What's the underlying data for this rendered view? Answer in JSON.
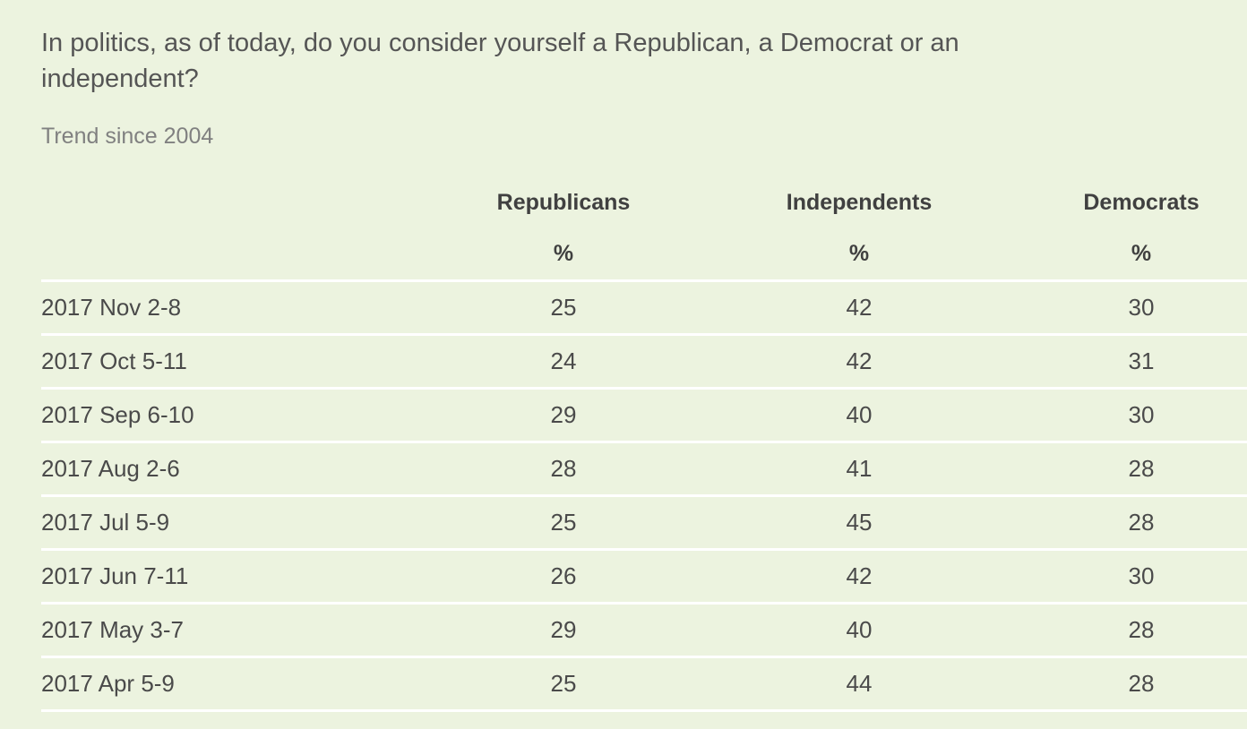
{
  "header": {
    "title": "In politics, as of today, do you consider yourself a Republican, a Democrat or an independent?",
    "subtitle": "Trend since 2004"
  },
  "table": {
    "columns": [
      "Republicans",
      "Independents",
      "Democrats"
    ],
    "units": [
      "%",
      "%",
      "%"
    ],
    "rows": [
      [
        "2017 Nov 2-8",
        25,
        42,
        30
      ],
      [
        "2017 Oct 5-11",
        24,
        42,
        31
      ],
      [
        "2017 Sep 6-10",
        29,
        40,
        30
      ],
      [
        "2017 Aug 2-6",
        28,
        41,
        28
      ],
      [
        "2017 Jul 5-9",
        25,
        45,
        28
      ],
      [
        "2017 Jun 7-11",
        26,
        42,
        30
      ],
      [
        "2017 May 3-7",
        29,
        40,
        28
      ],
      [
        "2017 Apr 5-9",
        25,
        44,
        28
      ]
    ]
  }
}
